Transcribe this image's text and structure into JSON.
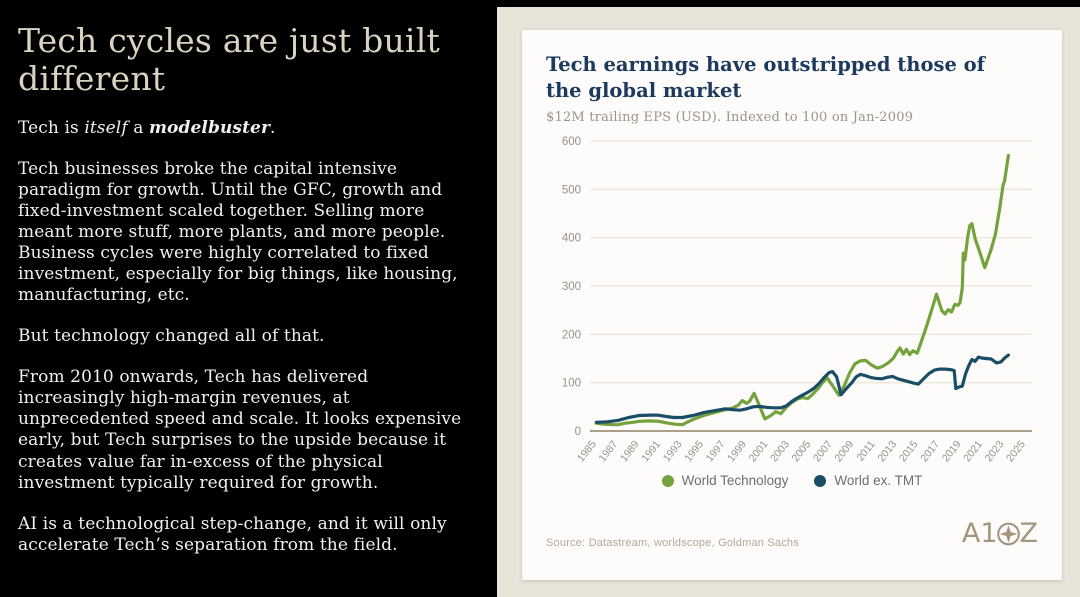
{
  "slide": {
    "title": "Tech cycles are just built different",
    "intro": {
      "pre": "Tech is ",
      "italic": "itself",
      "mid": " a ",
      "bold_italic": "modelbuster",
      "post": "."
    },
    "paragraphs": [
      "Tech businesses broke the capital intensive paradigm for growth. Until the GFC, growth and fixed-investment scaled together. Selling more meant more stuff, more plants, and more people. Business cycles were highly correlated to fixed investment, especially for big things, like housing, manufacturing, etc.",
      "But technology changed all of that.",
      "From 2010 onwards, Tech has delivered increasingly high-margin revenues, at unprecedented speed and scale. It looks expensive early, but Tech surprises to the upside because it creates value far in-excess of the physical investment typically required for growth.",
      "AI is a technological step-change, and it will only accelerate Tech’s separation from the field."
    ]
  },
  "panel": {
    "card": {
      "title": "Tech earnings have outstripped those of the global market",
      "subtitle": "$12M trailing EPS (USD). Indexed to 100 on Jan-2009",
      "source": "Source: Datastream, worldscope, Goldman Sachs",
      "logo": {
        "text": "A16Z",
        "prefix": "A1",
        "suffix": "Z"
      }
    }
  },
  "colors": {
    "slide_background": "#000000",
    "panel_background": "#E9E4D9",
    "card_background": "#FDFCFA",
    "headline_cream": "#DAD3C1",
    "body_text": "#F2F0EA",
    "chart_title_navy": "#1C3A5E",
    "grid": "#ECE6DB",
    "axis": "#AB9F8B",
    "tick_label": "#97918B",
    "source_tan": "#B5A896",
    "logo_tan": "#A3957E"
  },
  "chart_data": {
    "type": "line",
    "title": "Tech earnings have outstripped those of the global market",
    "subtitle": "$12M trailing EPS (USD). Indexed to 100 on Jan-2009",
    "xlabel": "",
    "ylabel": "",
    "ylim": [
      0,
      600
    ],
    "ytick_step": 100,
    "xlim": [
      1984.4,
      2025.6
    ],
    "xticks": [
      1985,
      1987,
      1989,
      1991,
      1993,
      1995,
      1997,
      1999,
      2001,
      2003,
      2005,
      2007,
      2009,
      2011,
      2013,
      2015,
      2017,
      2019,
      2021,
      2023,
      2025
    ],
    "grid": true,
    "legend_position": "bottom",
    "series": [
      {
        "name": "World Technology",
        "color": "#74A23C",
        "points": [
          [
            1985,
            16
          ],
          [
            1985.7,
            14
          ],
          [
            1986.5,
            13
          ],
          [
            1987,
            13
          ],
          [
            1987.6,
            16
          ],
          [
            1988.4,
            18
          ],
          [
            1989,
            20
          ],
          [
            1990,
            21
          ],
          [
            1990.8,
            20
          ],
          [
            1991.5,
            17
          ],
          [
            1992.3,
            14
          ],
          [
            1993,
            13
          ],
          [
            1994,
            24
          ],
          [
            1995,
            32
          ],
          [
            1996,
            38
          ],
          [
            1997,
            44
          ],
          [
            1997.6,
            47
          ],
          [
            1998.2,
            53
          ],
          [
            1998.6,
            63
          ],
          [
            1999,
            57
          ],
          [
            1999.3,
            62
          ],
          [
            1999.7,
            78
          ],
          [
            2000.2,
            52
          ],
          [
            2000.7,
            25
          ],
          [
            2001.2,
            31
          ],
          [
            2001.7,
            40
          ],
          [
            2002.2,
            36
          ],
          [
            2002.7,
            49
          ],
          [
            2003.2,
            59
          ],
          [
            2003.7,
            66
          ],
          [
            2004.2,
            69
          ],
          [
            2004.7,
            67
          ],
          [
            2005.2,
            77
          ],
          [
            2005.7,
            89
          ],
          [
            2006.1,
            101
          ],
          [
            2006.5,
            110
          ],
          [
            2007,
            94
          ],
          [
            2007.6,
            74
          ],
          [
            2008.1,
            94
          ],
          [
            2008.6,
            120
          ],
          [
            2009.1,
            139
          ],
          [
            2009.6,
            145
          ],
          [
            2010.1,
            146
          ],
          [
            2010.6,
            137
          ],
          [
            2011.2,
            130
          ],
          [
            2011.7,
            134
          ],
          [
            2012.2,
            141
          ],
          [
            2012.7,
            151
          ],
          [
            2013,
            163
          ],
          [
            2013.3,
            172
          ],
          [
            2013.6,
            159
          ],
          [
            2013.9,
            169
          ],
          [
            2014.2,
            158
          ],
          [
            2014.5,
            166
          ],
          [
            2014.9,
            161
          ],
          [
            2015.3,
            186
          ],
          [
            2015.7,
            212
          ],
          [
            2016.1,
            240
          ],
          [
            2016.7,
            283
          ],
          [
            2017.2,
            249
          ],
          [
            2017.5,
            242
          ],
          [
            2017.8,
            251
          ],
          [
            2018.1,
            246
          ],
          [
            2018.4,
            262
          ],
          [
            2018.7,
            260
          ],
          [
            2018.9,
            266
          ],
          [
            2019.1,
            296
          ],
          [
            2019.2,
            368
          ],
          [
            2019.35,
            354
          ],
          [
            2019.6,
            400
          ],
          [
            2019.8,
            425
          ],
          [
            2020,
            429
          ],
          [
            2020.3,
            398
          ],
          [
            2020.7,
            372
          ],
          [
            2021.2,
            338
          ],
          [
            2021.8,
            376
          ],
          [
            2022.2,
            408
          ],
          [
            2022.6,
            462
          ],
          [
            2022.9,
            508
          ],
          [
            2023.05,
            518
          ],
          [
            2023.4,
            570
          ]
        ]
      },
      {
        "name": "World ex. TMT",
        "color": "#1A4E66",
        "points": [
          [
            1985,
            18
          ],
          [
            1986,
            19
          ],
          [
            1987,
            22
          ],
          [
            1988,
            28
          ],
          [
            1989,
            32
          ],
          [
            1990,
            33
          ],
          [
            1990.7,
            33
          ],
          [
            1991.5,
            30
          ],
          [
            1992.2,
            28
          ],
          [
            1993,
            28
          ],
          [
            1994,
            32
          ],
          [
            1995,
            38
          ],
          [
            1996,
            42
          ],
          [
            1997,
            46
          ],
          [
            1997.7,
            44
          ],
          [
            1998.4,
            43
          ],
          [
            1999,
            46
          ],
          [
            1999.6,
            50
          ],
          [
            2000.2,
            51
          ],
          [
            2000.8,
            49
          ],
          [
            2001.5,
            48
          ],
          [
            2002.2,
            48
          ],
          [
            2002.7,
            52
          ],
          [
            2003.2,
            61
          ],
          [
            2003.7,
            68
          ],
          [
            2004.2,
            74
          ],
          [
            2004.7,
            80
          ],
          [
            2005.2,
            87
          ],
          [
            2005.7,
            97
          ],
          [
            2006.2,
            110
          ],
          [
            2006.7,
            121
          ],
          [
            2007,
            123
          ],
          [
            2007.4,
            112
          ],
          [
            2007.8,
            75
          ],
          [
            2008.3,
            88
          ],
          [
            2008.8,
            100
          ],
          [
            2009.2,
            112
          ],
          [
            2009.6,
            117
          ],
          [
            2010,
            115
          ],
          [
            2010.5,
            111
          ],
          [
            2011,
            109
          ],
          [
            2011.6,
            108
          ],
          [
            2012.1,
            111
          ],
          [
            2012.6,
            113
          ],
          [
            2013.1,
            108
          ],
          [
            2013.6,
            105
          ],
          [
            2014.1,
            102
          ],
          [
            2014.6,
            99
          ],
          [
            2015,
            97
          ],
          [
            2015.5,
            108
          ],
          [
            2016,
            119
          ],
          [
            2016.5,
            126
          ],
          [
            2017,
            128
          ],
          [
            2017.5,
            128
          ],
          [
            2018,
            127
          ],
          [
            2018.35,
            125
          ],
          [
            2018.5,
            88
          ],
          [
            2018.8,
            91
          ],
          [
            2019.1,
            93
          ],
          [
            2019.4,
            118
          ],
          [
            2019.7,
            135
          ],
          [
            2020,
            148
          ],
          [
            2020.3,
            144
          ],
          [
            2020.6,
            153
          ],
          [
            2020.9,
            151
          ],
          [
            2021.3,
            150
          ],
          [
            2021.8,
            149
          ],
          [
            2022.3,
            141
          ],
          [
            2022.7,
            143
          ],
          [
            2023.1,
            152
          ],
          [
            2023.4,
            157
          ]
        ]
      }
    ]
  }
}
